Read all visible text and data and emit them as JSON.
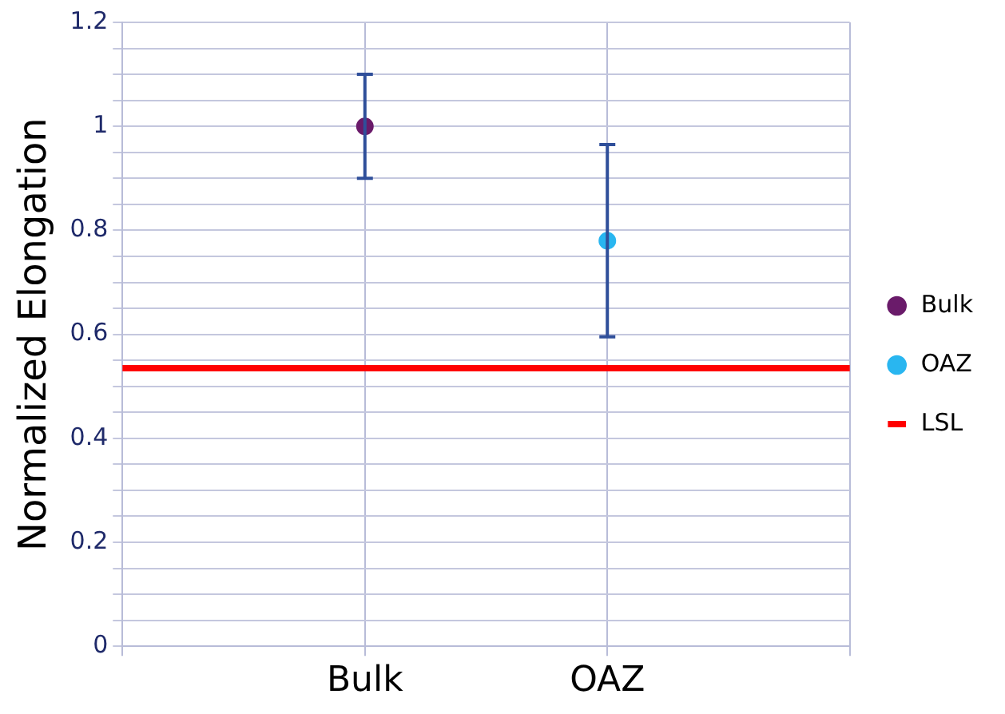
{
  "chart_data": {
    "type": "scatter",
    "ylabel": "Normalized Elongation",
    "categories": [
      null,
      "Bulk",
      "OAZ",
      null
    ],
    "series": [
      {
        "name": "Bulk",
        "color": "#6a1b6a",
        "values": [
          null,
          1.0,
          null,
          null
        ],
        "errors": [
          null,
          [
            0.9,
            1.1
          ],
          null,
          null
        ]
      },
      {
        "name": "OAZ",
        "color": "#29b6f0",
        "values": [
          null,
          null,
          0.78,
          null
        ],
        "errors": [
          null,
          null,
          [
            0.595,
            0.965
          ],
          null
        ]
      }
    ],
    "ref_lines": [
      {
        "axis": "y",
        "value": 0.535,
        "label": "LSL",
        "color": "#ff0000"
      }
    ],
    "ylim": [
      0,
      1.2
    ],
    "yticks": [
      0,
      {
        "value": 0.05,
        "label": null
      },
      {
        "value": 0.1,
        "label": null
      },
      {
        "value": 0.15,
        "label": null
      },
      0.2,
      {
        "value": 0.25,
        "label": null
      },
      {
        "value": 0.3,
        "label": null
      },
      {
        "value": 0.35,
        "label": null
      },
      0.4,
      {
        "value": 0.45,
        "label": null
      },
      {
        "value": 0.5,
        "label": null
      },
      {
        "value": 0.55,
        "label": null
      },
      0.6,
      {
        "value": 0.65,
        "label": null
      },
      {
        "value": 0.7,
        "label": null
      },
      {
        "value": 0.75,
        "label": null
      },
      0.8,
      {
        "value": 0.85,
        "label": null
      },
      {
        "value": 0.9,
        "label": null
      },
      {
        "value": 0.95,
        "label": null
      },
      1,
      {
        "value": 1.05,
        "label": null
      },
      {
        "value": 1.1,
        "label": null
      },
      {
        "value": 1.15,
        "label": null
      },
      1.2
    ],
    "grid": true,
    "legend": "right",
    "marker": "circle"
  }
}
